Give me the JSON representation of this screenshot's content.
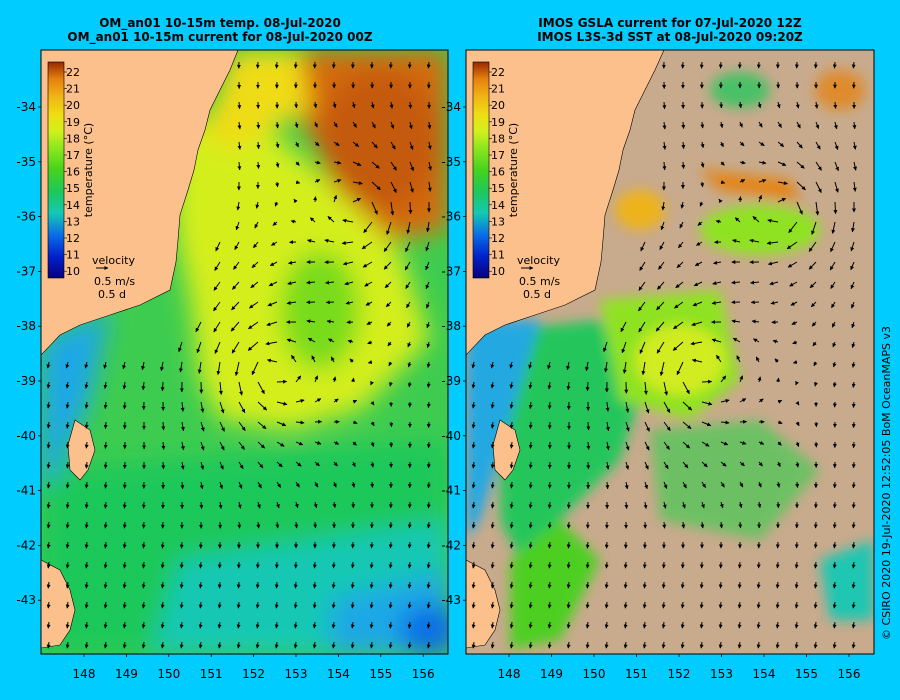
{
  "panels": [
    {
      "id": "left",
      "title_line1": "OM_an01 10-15m temp. 08-Jul-2020",
      "title_line2": "OM_an01 10-15m current for 08-Jul-2020 00Z",
      "colorbar_label": "temperature (°C)",
      "colorbar_ticks": [
        "22",
        "21",
        "20",
        "19",
        "18",
        "17",
        "16",
        "15",
        "14",
        "13",
        "12",
        "11",
        "10"
      ],
      "velocity_label": "velocity",
      "velocity_speed": "0.5 m/s",
      "velocity_time": "0.5 d",
      "lat_ticks": [
        "-34",
        "-35",
        "-36",
        "-37",
        "-38",
        "-39",
        "-40",
        "-41",
        "-42",
        "-43"
      ],
      "lon_ticks": [
        "148",
        "149",
        "150",
        "151",
        "152",
        "153",
        "154",
        "155",
        "156"
      ]
    },
    {
      "id": "right",
      "title_line1": "IMOS GSLA current for 07-Jul-2020 12Z",
      "title_line2": "IMOS L3S-3d SST at 08-Jul-2020 09:20Z",
      "colorbar_label": "temperature (°C)",
      "colorbar_ticks": [
        "22",
        "21",
        "20",
        "19",
        "18",
        "17",
        "16",
        "15",
        "14",
        "13",
        "12",
        "11",
        "10"
      ],
      "velocity_label": "velocity",
      "velocity_speed": "0.5 m/s",
      "velocity_time": "0.5 d",
      "lat_ticks": [
        "-34",
        "-35",
        "-36",
        "-37",
        "-38",
        "-39",
        "-40",
        "-41",
        "-42",
        "-43"
      ],
      "lon_ticks": [
        "148",
        "149",
        "150",
        "151",
        "152",
        "153",
        "154",
        "155",
        "156"
      ]
    }
  ],
  "credit": "© CSIRO 2020   19-Jul-2020 12:52:05 BoM OceanMAPS v3",
  "colors": {
    "background": "#00ccff",
    "land": "#fcc08c",
    "no_data": "#c8aa8c",
    "colormap": [
      "#08007a",
      "#0022cc",
      "#0a6ee6",
      "#1ea8e6",
      "#14c8b4",
      "#1ec85a",
      "#46d21e",
      "#8ce61e",
      "#d2f01e",
      "#f0dc14",
      "#f0b414",
      "#e6820f",
      "#c85a0f",
      "#9a2800"
    ]
  }
}
